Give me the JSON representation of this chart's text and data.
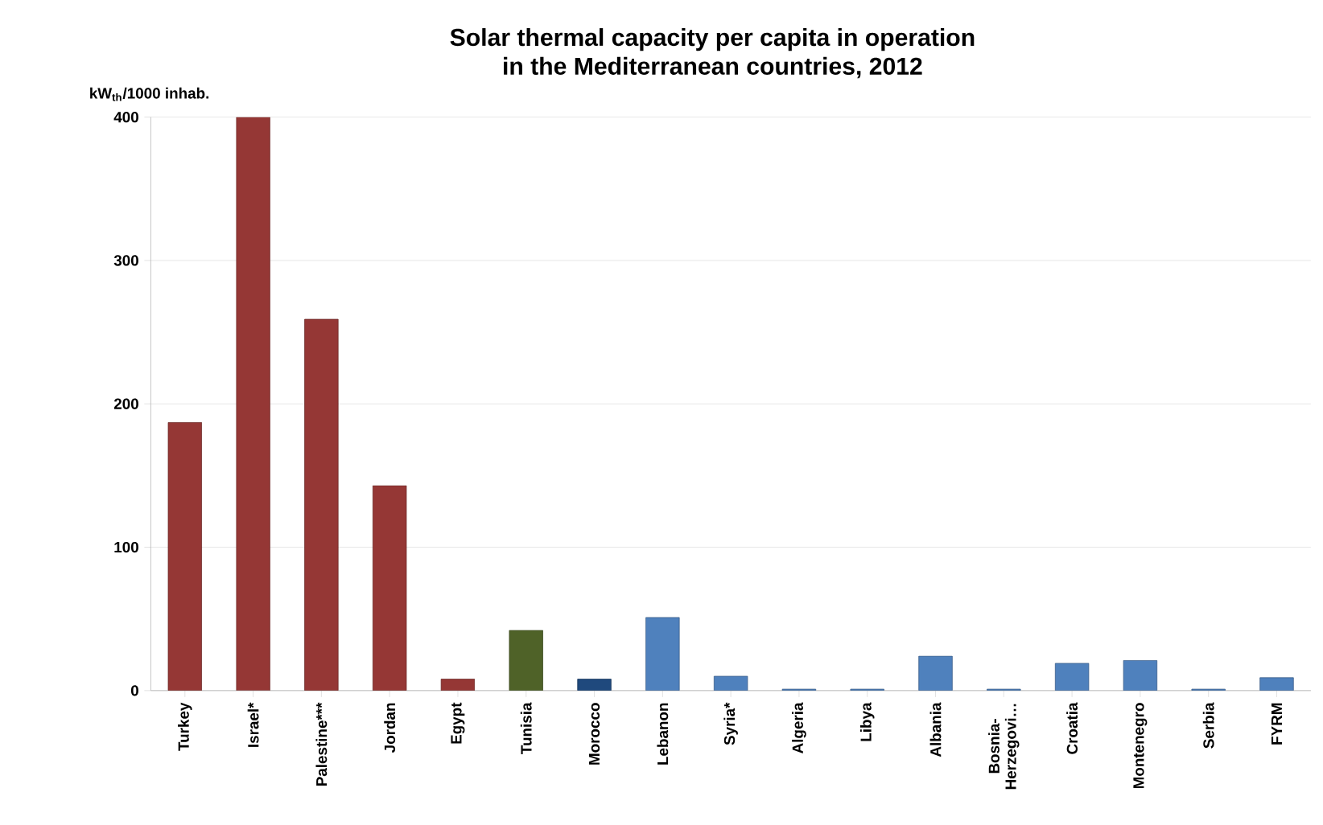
{
  "chart_data": {
    "type": "bar",
    "title": "Solar thermal capacity per capita in operation\nin the Mediterranean countries, 2012",
    "ylabel": "kW$_{th}$/1000 inhab.",
    "categories": [
      "Turkey",
      "Israel*",
      "Palestine***",
      "Jordan",
      "Egypt",
      "Tunisia",
      "Morocco",
      "Lebanon",
      "Syria*",
      "Algeria",
      "Libya",
      "Albania",
      "Bosnia-\nHerzegovi…",
      "Croatia",
      "Montenegro",
      "Serbia",
      "FYRM"
    ],
    "values": [
      187,
      400,
      259,
      143,
      8,
      42,
      8,
      51,
      10,
      1,
      1,
      24,
      1,
      19,
      21,
      1,
      9
    ],
    "colors": [
      "#953735",
      "#953735",
      "#953735",
      "#953735",
      "#953735",
      "#4f6228",
      "#1f497d",
      "#4f81bd",
      "#4f81bd",
      "#4f81bd",
      "#4f81bd",
      "#4f81bd",
      "#4f81bd",
      "#4f81bd",
      "#4f81bd",
      "#4f81bd",
      "#4f81bd"
    ],
    "ylim": [
      0,
      400
    ],
    "yticks": [
      0,
      100,
      200,
      300,
      400
    ],
    "grid": "y"
  }
}
